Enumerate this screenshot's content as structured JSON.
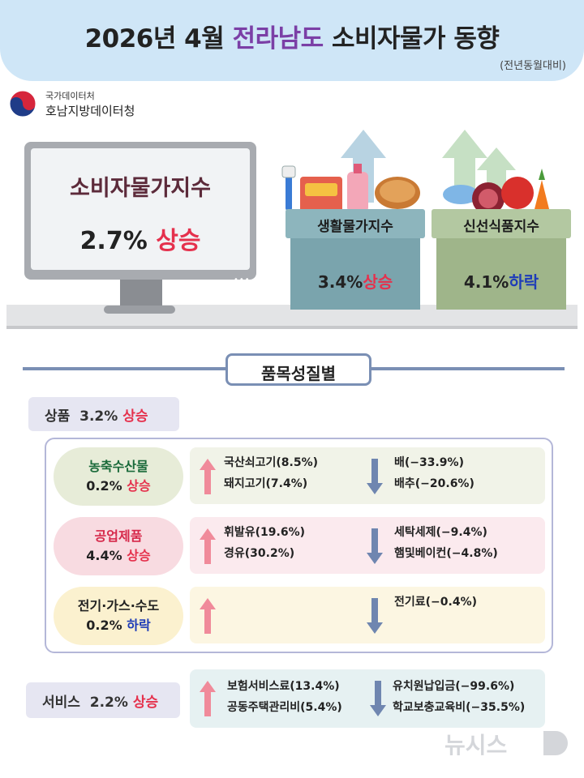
{
  "header": {
    "title_prefix": "2026년 4월 ",
    "title_region": "전라남도",
    "title_suffix": " 소비자물가 동향",
    "subtitle": "(전년동월대비)"
  },
  "logo": {
    "line1": "국가데이터처",
    "line2": "호남지방데이터청"
  },
  "monitor": {
    "title": "소비자물가지수",
    "value": "2.7%",
    "direction": "상승"
  },
  "boxes": [
    {
      "label": "생활물가지수",
      "value": "3.4%",
      "direction": "상승",
      "color": "#7aa4ad"
    },
    {
      "label": "신선식품지수",
      "value": "4.1%",
      "direction": "하락",
      "color": "#9fb58a"
    }
  ],
  "section": {
    "title": "품목성질별"
  },
  "goods_tag": {
    "label": "상품",
    "value": "3.2%",
    "direction": "상승"
  },
  "categories": [
    {
      "name": "농축수산물",
      "value": "0.2%",
      "direction": "상승",
      "pill_color": "#e7ecd8",
      "card_color": "#f1f3e8",
      "up": [
        "국산쇠고기(8.5%)",
        "돼지고기(7.4%)"
      ],
      "down": [
        "배(−33.9%)",
        "배추(−20.6%)"
      ]
    },
    {
      "name": "공업제품",
      "value": "4.4%",
      "direction": "상승",
      "pill_color": "#f8dbe1",
      "card_color": "#fbeaee",
      "up": [
        "휘발유(19.6%)",
        "경유(30.2%)"
      ],
      "down": [
        "세탁세제(−9.4%)",
        "햄및베이컨(−4.8%)"
      ]
    },
    {
      "name": "전기·가스·수도",
      "value": "0.2%",
      "direction": "하락",
      "pill_color": "#fbf1cf",
      "card_color": "#fcf6e2",
      "up": [],
      "down": [
        "전기료(−0.4%)"
      ]
    }
  ],
  "service": {
    "name": "서비스",
    "value": "2.2%",
    "direction": "상승",
    "card_color": "#e6f1f2",
    "up": [
      "보험서비스료(13.4%)",
      "공동주택관리비(5.4%)"
    ],
    "down": [
      "유치원납입금(−99.6%)",
      "학교보충교육비(−35.5%)"
    ]
  },
  "watermark": "뉴시스",
  "colors": {
    "up": "#e5314d",
    "down": "#1e3cb8",
    "up_arrow": "#f08a9a",
    "down_arrow": "#6f86b0"
  }
}
